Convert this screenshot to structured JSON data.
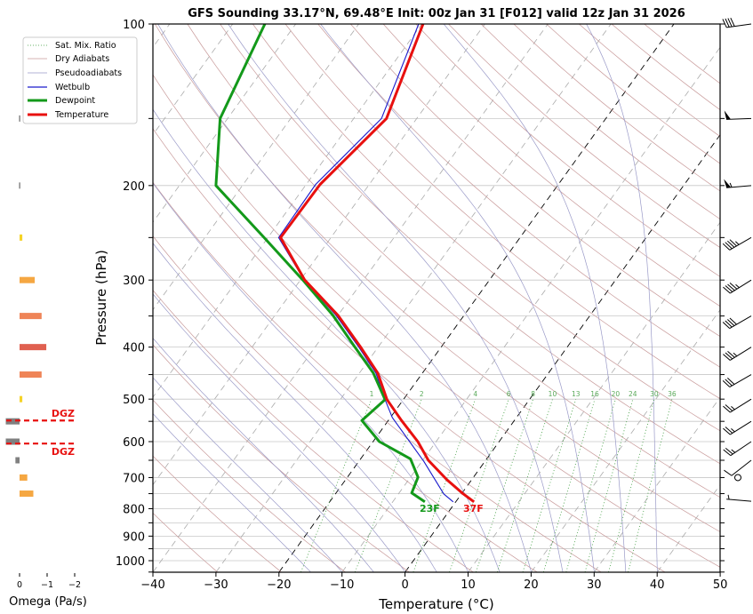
{
  "chart_data": {
    "type": "line",
    "title": "GFS Sounding 33.17°N, 69.48°E Init: 00z Jan 31 [F012] valid 12z Jan 31 2026",
    "xlabel": "Temperature (°C)",
    "ylabel": "Pressure (hPa)",
    "xlim": [
      -40,
      50
    ],
    "ylim": [
      1050,
      100
    ],
    "y_scale": "log",
    "grid": true,
    "x_ticks": [
      -40,
      -30,
      -20,
      -10,
      0,
      10,
      20,
      30,
      40,
      50
    ],
    "y_ticks": [
      100,
      200,
      300,
      400,
      500,
      600,
      700,
      800,
      900,
      1000
    ],
    "legend_position": "top-left",
    "legend": [
      "Sat. Mix. Ratio",
      "Dry Adiabats",
      "Pseudoadiabats",
      "Wetbulb",
      "Dewpoint",
      "Temperature"
    ],
    "colors": {
      "temperature": "#e8100f",
      "dewpoint": "#13991a",
      "wetbulb": "#1a1acc",
      "dry_adiabat": "#c89a9a",
      "moist_adiabat": "#9a9ac8",
      "mixing_ratio": "#3a9a3a",
      "isotherm_zero": "#000000"
    },
    "series": [
      {
        "name": "Temperature",
        "p": [
          777,
          748,
          707,
          650,
          600,
          548,
          501,
          447,
          399,
          349,
          300,
          250,
          199,
          150,
          100
        ],
        "t": [
          2.9,
          0.0,
          -3.9,
          -9.1,
          -12.9,
          -17.9,
          -22.6,
          -27.1,
          -32.9,
          -40.0,
          -49.3,
          -58.0,
          -57.8,
          -54.8,
          -59.8
        ]
      },
      {
        "name": "Dewpoint",
        "p": [
          777,
          748,
          699,
          646,
          600,
          548,
          501,
          447,
          399,
          349,
          300,
          250,
          200,
          150,
          100
        ],
        "t": [
          -4.9,
          -8.0,
          -8.8,
          -12.1,
          -19.0,
          -24.2,
          -22.9,
          -27.8,
          -33.8,
          -40.8,
          -49.6,
          -60.6,
          -74.2,
          -81.2,
          -84.9
        ]
      },
      {
        "name": "Wetbulb",
        "p": [
          777,
          751,
          653,
          541,
          501,
          447,
          399,
          349,
          300,
          250,
          199,
          150,
          100
        ],
        "t": [
          -0.4,
          -2.8,
          -9.7,
          -19.7,
          -22.9,
          -27.4,
          -33.2,
          -40.3,
          -49.4,
          -58.3,
          -58.5,
          -55.6,
          -60.5
        ]
      }
    ],
    "surface_labels": {
      "temperature": "37F",
      "dewpoint": "23F"
    },
    "mixing_ratio_labels": [
      "1",
      "2",
      "4",
      "6",
      "8",
      "10",
      "13",
      "16",
      "20",
      "24",
      "30",
      "36"
    ],
    "omega": {
      "xlabel": "Omega (Pa/s)",
      "x_ticks": [
        "0",
        "−1",
        "−2"
      ],
      "p": [
        150,
        200,
        250,
        300,
        350,
        400,
        450,
        500,
        550,
        600,
        650,
        700,
        750
      ],
      "values": [
        0.02,
        0.02,
        -0.1,
        -0.55,
        -0.8,
        -0.97,
        -0.8,
        -0.1,
        0.5,
        0.5,
        0.15,
        -0.28,
        -0.5
      ],
      "dgz_label": "DGZ",
      "dgz_p": [
        548,
        605
      ]
    },
    "winds": {
      "p": [
        100,
        150,
        200,
        250,
        300,
        350,
        400,
        450,
        500,
        550,
        600,
        650,
        700,
        775
      ],
      "speed_kt": [
        40,
        50,
        55,
        45,
        45,
        40,
        35,
        30,
        25,
        25,
        25,
        10,
        0,
        5
      ],
      "direction_deg": [
        262,
        268,
        265,
        240,
        238,
        240,
        238,
        240,
        238,
        238,
        236,
        232,
        0,
        275
      ]
    }
  }
}
